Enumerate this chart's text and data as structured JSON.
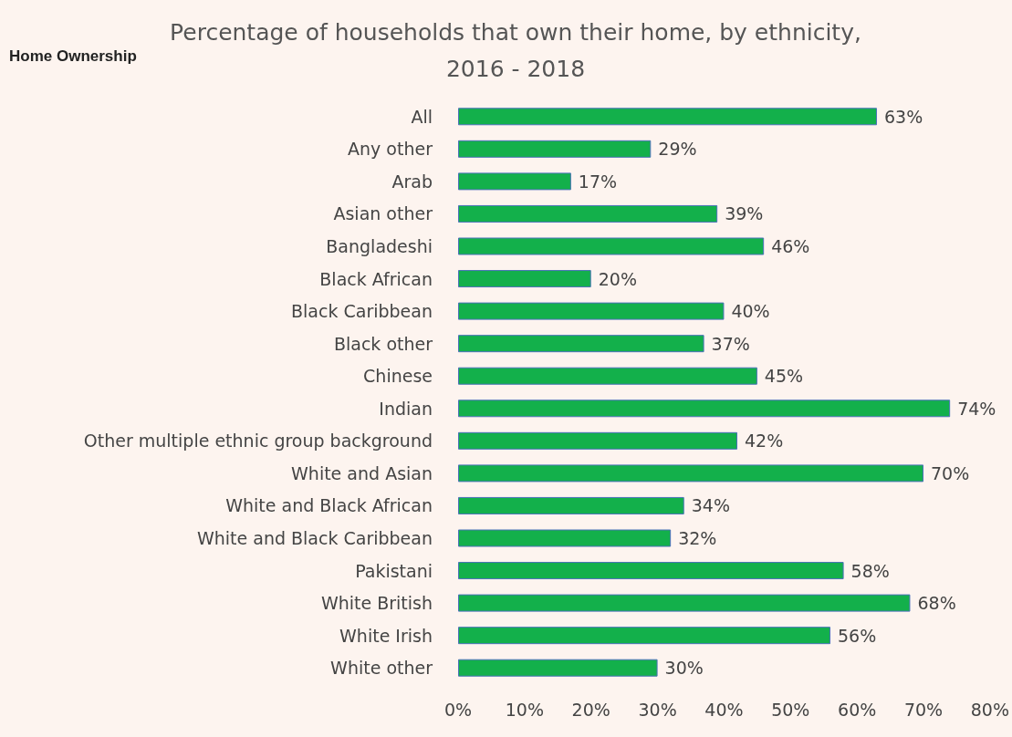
{
  "chart_data": {
    "type": "bar",
    "orientation": "horizontal",
    "title": "Percentage of households that own their home, by ethnicity,\n2016 - 2018",
    "annotations": [
      "Home Ownership"
    ],
    "categories": [
      "All",
      "Any other",
      "Arab",
      "Asian other",
      "Bangladeshi",
      "Black African",
      "Black Caribbean",
      "Black other",
      "Chinese",
      "Indian",
      "Other multiple ethnic group background",
      "White and Asian",
      "White and Black African",
      "White and Black Caribbean",
      "Pakistani",
      "White British",
      "White Irish",
      "White other"
    ],
    "values": [
      63,
      29,
      17,
      39,
      46,
      20,
      40,
      37,
      45,
      74,
      42,
      70,
      34,
      32,
      58,
      68,
      56,
      30
    ],
    "value_labels": [
      "63%",
      "29%",
      "17%",
      "39%",
      "46%",
      "20%",
      "40%",
      "37%",
      "45%",
      "74%",
      "42%",
      "70%",
      "34%",
      "32%",
      "58%",
      "68%",
      "56%",
      "30%"
    ],
    "color": "#13b04b",
    "xlim": [
      0,
      80
    ],
    "xticks": [
      {
        "value": 0,
        "label": "0%"
      },
      {
        "value": 10,
        "label": "10%"
      },
      {
        "value": 20,
        "label": "20%"
      },
      {
        "value": 30,
        "label": "30%"
      },
      {
        "value": 40,
        "label": "40%"
      },
      {
        "value": 50,
        "label": "50%"
      },
      {
        "value": 60,
        "label": "60%"
      },
      {
        "value": 70,
        "label": "70%"
      },
      {
        "value": 80,
        "label": "80%"
      }
    ],
    "grid": false
  }
}
